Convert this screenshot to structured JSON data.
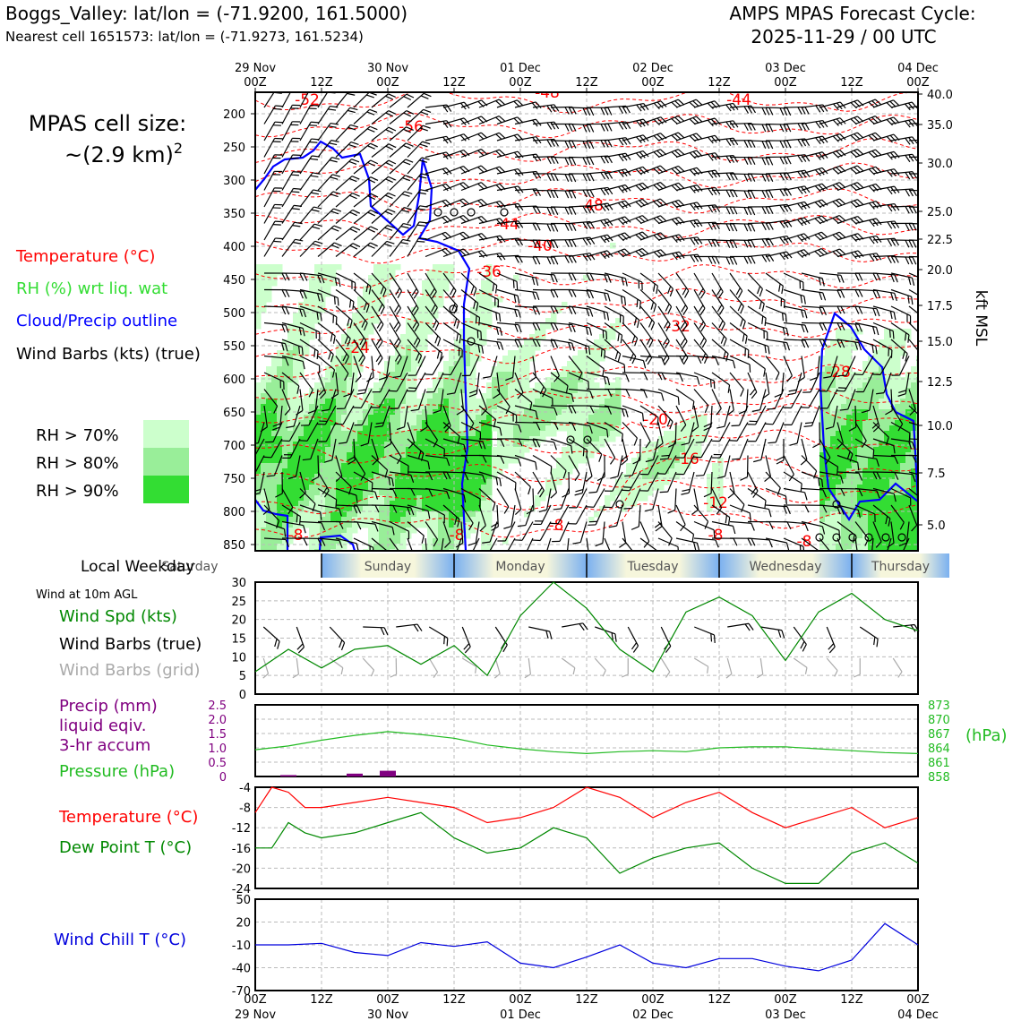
{
  "header": {
    "station": "Boggs_Valley: lat/lon = (-71.9200, 161.5000)",
    "nearest": "Nearest cell 1651573: lat/lon = (-71.9273, 161.5234)",
    "model_line1": "AMPS MPAS Forecast Cycle:",
    "model_line2": "2025-11-29 / 00 UTC"
  },
  "cell_size": {
    "line1": "MPAS cell size:",
    "line2": "~(2.9 km)",
    "sup": "2"
  },
  "legend": {
    "temperature": "Temperature (°C)",
    "rh": "RH (%) wrt liq. wat",
    "cloud": "Cloud/Precip outline",
    "barbs": "Wind Barbs (kts) (true)",
    "rh70": "RH > 70%",
    "rh80": "RH > 80%",
    "rh90": "RH > 90%"
  },
  "colors": {
    "temperature": "#ff0000",
    "rh_text": "#33dd33",
    "cloud": "#0000ff",
    "rh70": "#ccffcc",
    "rh80": "#99ee99",
    "rh90": "#33dd33",
    "wind_speed": "#008800",
    "precip": "#800080",
    "pressure": "#22bb22",
    "dewpoint": "#008800",
    "windchill": "#0000dd",
    "barb_grid": "#aaaaaa"
  },
  "time_axis": {
    "top_labels": [
      {
        "date": "29 Nov",
        "hour": "00Z"
      },
      {
        "date": "",
        "hour": "12Z"
      },
      {
        "date": "30 Nov",
        "hour": "00Z"
      },
      {
        "date": "",
        "hour": "12Z"
      },
      {
        "date": "01 Dec",
        "hour": "00Z"
      },
      {
        "date": "",
        "hour": "12Z"
      },
      {
        "date": "02 Dec",
        "hour": "00Z"
      },
      {
        "date": "",
        "hour": "12Z"
      },
      {
        "date": "03 Dec",
        "hour": "00Z"
      },
      {
        "date": "",
        "hour": "12Z"
      },
      {
        "date": "04 Dec",
        "hour": "00Z"
      }
    ]
  },
  "weekday": {
    "label": "Local Weekday",
    "days": [
      "Saturday",
      "Sunday",
      "Monday",
      "Tuesday",
      "Wednesday",
      "Thursday"
    ]
  },
  "surface": {
    "wind_header": "Wind at 10m AGL",
    "wind_spd_label": "Wind Spd (kts)",
    "barbs_true_label": "Wind Barbs (true)",
    "barbs_grid_label": "Wind Barbs (grid)",
    "precip_label1": "Precip (mm)",
    "precip_label2": "liquid eqiv.",
    "precip_label3": "3-hr accum",
    "pressure_label": "Pressure (hPa)",
    "hpa_unit": "(hPa)",
    "temp_label": "Temperature (°C)",
    "dew_label": "Dew Point T (°C)",
    "windchill_label": "Wind Chill T (°C)"
  },
  "chart_data": [
    {
      "type": "heatmap",
      "yaxis_left": {
        "label": "",
        "ticks": [
          200,
          250,
          300,
          350,
          400,
          450,
          500,
          550,
          600,
          650,
          700,
          750,
          800,
          850
        ]
      },
      "yaxis_right": {
        "label": "kft MSL",
        "ticks": [
          "40.0",
          "35.0",
          "30.0",
          "25.0",
          "22.5",
          "20.0",
          "17.5",
          "15.0",
          "12.5",
          "10.0",
          "7.5",
          "5.0"
        ]
      },
      "temperature_labels": [
        "-52",
        "-56",
        "-48",
        "-44",
        "-48",
        "-44",
        "-40",
        "-36",
        "-32",
        "-24",
        "-28",
        "-20",
        "-16",
        "-12",
        "-8",
        "-8",
        "-8",
        "-8",
        "-8"
      ],
      "grid": true
    },
    {
      "type": "line",
      "title": "",
      "series": [
        {
          "name": "Wind Spd (kts)",
          "x_hours": [
            0,
            6,
            12,
            18,
            24,
            30,
            36,
            42,
            48,
            54,
            60,
            66,
            72,
            78,
            84,
            90,
            96,
            102,
            108,
            114,
            120
          ],
          "values": [
            6,
            12,
            7,
            12,
            13,
            8,
            13,
            5,
            21,
            30,
            23,
            12,
            6,
            22,
            26,
            21,
            9,
            22,
            27,
            20,
            17
          ]
        }
      ],
      "y_ticks": [
        0,
        5,
        10,
        15,
        20,
        25,
        30
      ],
      "ylim": [
        0,
        30
      ]
    },
    {
      "type": "bar",
      "series": [
        {
          "name": "Precip (mm)",
          "x_hours": [
            6,
            12,
            18,
            24
          ],
          "values": [
            0.05,
            0.0,
            0.1,
            0.2
          ]
        },
        {
          "name": "Pressure (hPa)",
          "x_hours": [
            0,
            6,
            12,
            18,
            24,
            30,
            36,
            42,
            48,
            54,
            60,
            66,
            72,
            78,
            84,
            90,
            96,
            102,
            108,
            114,
            120
          ],
          "values": [
            863.6,
            864.4,
            865.6,
            866.6,
            867.4,
            866.8,
            866.0,
            864.6,
            863.8,
            863.2,
            862.8,
            863.2,
            863.4,
            863.2,
            864.0,
            864.2,
            864.2,
            863.8,
            863.4,
            863.0,
            862.8
          ]
        }
      ],
      "y_ticks_left": [
        "0",
        "0.5",
        "1.0",
        "1.5",
        "2.0",
        "2.5"
      ],
      "y_ticks_right": [
        "858",
        "861",
        "864",
        "867",
        "870",
        "873"
      ]
    },
    {
      "type": "line",
      "series": [
        {
          "name": "Temperature (°C)",
          "x_hours": [
            0,
            3,
            6,
            9,
            12,
            18,
            24,
            30,
            36,
            42,
            48,
            54,
            60,
            66,
            72,
            78,
            84,
            90,
            96,
            102,
            108,
            114,
            120
          ],
          "values": [
            -9,
            -4,
            -5,
            -8,
            -8,
            -7,
            -6,
            -7,
            -8,
            -11,
            -10,
            -8,
            -4,
            -6,
            -10,
            -7,
            -5,
            -9,
            -12,
            -10,
            -8,
            -12,
            -10
          ]
        },
        {
          "name": "Dew Point T (°C)",
          "x_hours": [
            0,
            3,
            6,
            9,
            12,
            18,
            24,
            30,
            36,
            42,
            48,
            54,
            60,
            66,
            72,
            78,
            84,
            90,
            96,
            102,
            108,
            114,
            120
          ],
          "values": [
            -16,
            -16,
            -11,
            -13,
            -14,
            -13,
            -11,
            -9,
            -14,
            -17,
            -16,
            -12,
            -14,
            -21,
            -18,
            -16,
            -15,
            -20,
            -23,
            -23,
            -17,
            -15,
            -19
          ]
        }
      ],
      "y_ticks": [
        -4,
        -8,
        -12,
        -16,
        -20,
        -24
      ],
      "ylim": [
        -24,
        -4
      ]
    },
    {
      "type": "line",
      "series": [
        {
          "name": "Wind Chill T (°C)",
          "x_hours": [
            0,
            6,
            12,
            18,
            24,
            30,
            36,
            42,
            48,
            54,
            60,
            66,
            72,
            78,
            84,
            90,
            96,
            102,
            108,
            114,
            120
          ],
          "values": [
            -10,
            -10,
            -8,
            -20,
            -24,
            -7,
            -12,
            -6,
            -34,
            -40,
            -26,
            -10,
            -34,
            -40,
            -28,
            -28,
            -38,
            -44,
            -30,
            18,
            -10
          ]
        }
      ],
      "y_ticks": [
        50,
        20,
        -10,
        -40,
        -70
      ],
      "ylim": [
        -70,
        50
      ]
    }
  ]
}
